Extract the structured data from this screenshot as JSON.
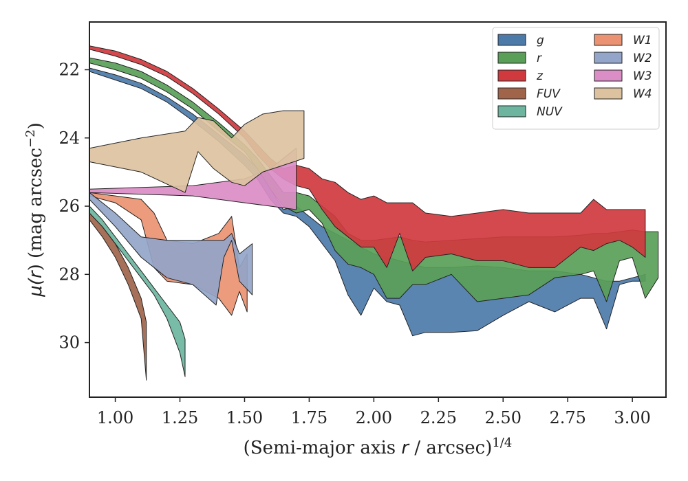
{
  "chart_data": {
    "type": "area",
    "xlabel": "(Semi-major axis r / arcsec)^1/4",
    "ylabel": "μ(r) (mag arcsec^-2)",
    "xlim": [
      0.9,
      3.13
    ],
    "ylim": [
      31.6,
      20.6
    ],
    "y_inverted": true,
    "grid": false,
    "legend_placement": "top-right",
    "legend_columns": 2,
    "x_ticks": [
      "1.00",
      "1.25",
      "1.50",
      "1.75",
      "2.00",
      "2.25",
      "2.50",
      "2.75",
      "3.00"
    ],
    "y_ticks": [
      "22",
      "24",
      "26",
      "28",
      "30"
    ],
    "series": [
      {
        "name": "g",
        "color": "#4C7BAA",
        "x": [
          0.9,
          1.0,
          1.1,
          1.2,
          1.3,
          1.4,
          1.5,
          1.55,
          1.6,
          1.65,
          1.7,
          1.75,
          1.8,
          1.85,
          1.9,
          1.95,
          2.0,
          2.05,
          2.1,
          2.15,
          2.2,
          2.3,
          2.4,
          2.5,
          2.6,
          2.7,
          2.8,
          2.85,
          2.9,
          2.95,
          3.0,
          3.05
        ],
        "y_upper": [
          21.95,
          22.15,
          22.4,
          22.8,
          23.3,
          23.9,
          24.5,
          24.9,
          25.5,
          26.1,
          26.0,
          26.3,
          26.6,
          26.8,
          27.0,
          27.2,
          27.4,
          27.5,
          27.6,
          27.7,
          27.8,
          27.8,
          27.75,
          27.8,
          27.9,
          27.9,
          28.0,
          28.1,
          28.2,
          28.2,
          28.1,
          28.0
        ],
        "y_lower": [
          22.05,
          22.3,
          22.55,
          22.95,
          23.5,
          24.1,
          24.8,
          25.2,
          25.8,
          26.2,
          26.3,
          26.6,
          27.1,
          27.6,
          28.6,
          29.2,
          28.4,
          28.8,
          28.9,
          29.8,
          29.7,
          29.7,
          29.65,
          29.2,
          28.8,
          29.1,
          28.7,
          28.7,
          29.6,
          28.3,
          28.2,
          28.2
        ]
      },
      {
        "name": "r",
        "color": "#5A9F58",
        "x": [
          0.9,
          1.0,
          1.1,
          1.2,
          1.3,
          1.4,
          1.5,
          1.55,
          1.6,
          1.65,
          1.7,
          1.75,
          1.8,
          1.85,
          1.9,
          1.95,
          2.0,
          2.05,
          2.1,
          2.15,
          2.2,
          2.3,
          2.4,
          2.5,
          2.6,
          2.7,
          2.8,
          2.85,
          2.9,
          2.95,
          3.0,
          3.05,
          3.1
        ],
        "y_upper": [
          21.65,
          21.8,
          22.05,
          22.45,
          22.95,
          23.55,
          24.2,
          24.6,
          25.1,
          25.6,
          25.6,
          25.7,
          26.0,
          26.3,
          26.8,
          27.0,
          27.0,
          26.95,
          26.9,
          27.0,
          27.05,
          27.0,
          26.95,
          26.9,
          26.9,
          26.9,
          26.85,
          26.8,
          26.8,
          26.75,
          26.7,
          26.75,
          26.75
        ],
        "y_lower": [
          21.8,
          22.0,
          22.25,
          22.65,
          23.15,
          23.8,
          24.4,
          24.9,
          25.5,
          26.0,
          26.2,
          26.1,
          26.5,
          27.3,
          27.7,
          27.8,
          28.0,
          28.7,
          28.7,
          28.3,
          28.3,
          28.0,
          28.8,
          28.7,
          28.6,
          28.1,
          28.0,
          27.9,
          28.8,
          27.6,
          27.5,
          28.7,
          28.1
        ]
      },
      {
        "name": "z",
        "color": "#D0393E",
        "x": [
          0.9,
          1.0,
          1.1,
          1.2,
          1.3,
          1.4,
          1.5,
          1.55,
          1.6,
          1.65,
          1.7,
          1.75,
          1.8,
          1.85,
          1.9,
          1.95,
          2.0,
          2.05,
          2.1,
          2.15,
          2.2,
          2.3,
          2.4,
          2.5,
          2.6,
          2.7,
          2.8,
          2.85,
          2.9,
          2.95,
          3.0,
          3.05
        ],
        "y_upper": [
          21.3,
          21.45,
          21.7,
          22.05,
          22.55,
          23.15,
          23.8,
          24.2,
          24.6,
          24.9,
          24.8,
          24.9,
          25.2,
          25.3,
          25.6,
          25.8,
          25.7,
          25.9,
          25.9,
          25.9,
          26.2,
          26.3,
          26.2,
          26.1,
          26.2,
          26.2,
          26.2,
          25.8,
          26.1,
          26.1,
          26.1,
          26.1
        ],
        "y_lower": [
          21.4,
          21.6,
          21.85,
          22.2,
          22.7,
          23.3,
          24.0,
          24.5,
          24.9,
          25.2,
          25.4,
          25.5,
          26.1,
          26.6,
          26.9,
          27.2,
          27.2,
          27.8,
          26.8,
          27.9,
          27.5,
          27.4,
          27.6,
          27.6,
          27.8,
          27.8,
          27.2,
          27.3,
          27.1,
          27.0,
          27.2,
          27.5
        ]
      },
      {
        "name": "FUV",
        "color": "#A0644A",
        "x": [
          0.9,
          0.95,
          1.0,
          1.05,
          1.1,
          1.12
        ],
        "y_upper": [
          26.2,
          26.6,
          27.1,
          27.8,
          28.7,
          29.4
        ],
        "y_lower": [
          26.4,
          26.9,
          27.5,
          28.3,
          29.3,
          31.1
        ]
      },
      {
        "name": "NUV",
        "color": "#6DB59F",
        "x": [
          0.9,
          0.95,
          1.0,
          1.05,
          1.1,
          1.15,
          1.2,
          1.25,
          1.27
        ],
        "y_upper": [
          26.0,
          26.4,
          26.9,
          27.4,
          27.9,
          28.4,
          28.9,
          29.4,
          29.9
        ],
        "y_lower": [
          26.2,
          26.6,
          27.1,
          27.6,
          28.1,
          28.6,
          29.3,
          30.3,
          31.0
        ]
      },
      {
        "name": "W1",
        "color": "#EB9272",
        "x": [
          0.9,
          1.0,
          1.1,
          1.15,
          1.2,
          1.3,
          1.4,
          1.45,
          1.48,
          1.51
        ],
        "y_upper": [
          25.6,
          25.7,
          25.8,
          26.2,
          27.0,
          27.1,
          26.8,
          26.3,
          27.8,
          27.4
        ],
        "y_lower": [
          25.7,
          25.9,
          26.4,
          27.8,
          28.2,
          28.3,
          28.7,
          29.2,
          28.5,
          29.1
        ]
      },
      {
        "name": "W2",
        "color": "#93A5C8",
        "x": [
          0.9,
          1.0,
          1.1,
          1.2,
          1.3,
          1.39,
          1.42,
          1.45,
          1.48,
          1.53
        ],
        "y_upper": [
          25.6,
          26.2,
          26.9,
          27.0,
          27.0,
          27.0,
          27.0,
          26.8,
          27.4,
          27.1
        ],
        "y_lower": [
          25.8,
          26.6,
          27.5,
          28.1,
          28.3,
          28.9,
          27.5,
          27.0,
          28.2,
          28.6
        ]
      },
      {
        "name": "W3",
        "color": "#DB8DC6",
        "x": [
          0.9,
          1.3,
          1.4,
          1.5,
          1.6,
          1.7
        ],
        "y_upper": [
          25.5,
          25.4,
          25.3,
          25.2,
          24.9,
          24.3
        ],
        "y_lower": [
          25.6,
          25.7,
          25.8,
          25.9,
          26.0,
          26.1
        ]
      },
      {
        "name": "W4",
        "color": "#DCC29F",
        "x": [
          0.9,
          1.1,
          1.27,
          1.32,
          1.38,
          1.45,
          1.5,
          1.57,
          1.65,
          1.73
        ],
        "y_upper": [
          24.3,
          24.0,
          23.8,
          23.4,
          23.5,
          24.0,
          23.6,
          23.3,
          23.2,
          23.2
        ],
        "y_lower": [
          24.7,
          25.0,
          25.6,
          24.4,
          24.9,
          25.3,
          25.4,
          25.0,
          24.8,
          24.6
        ]
      }
    ]
  }
}
